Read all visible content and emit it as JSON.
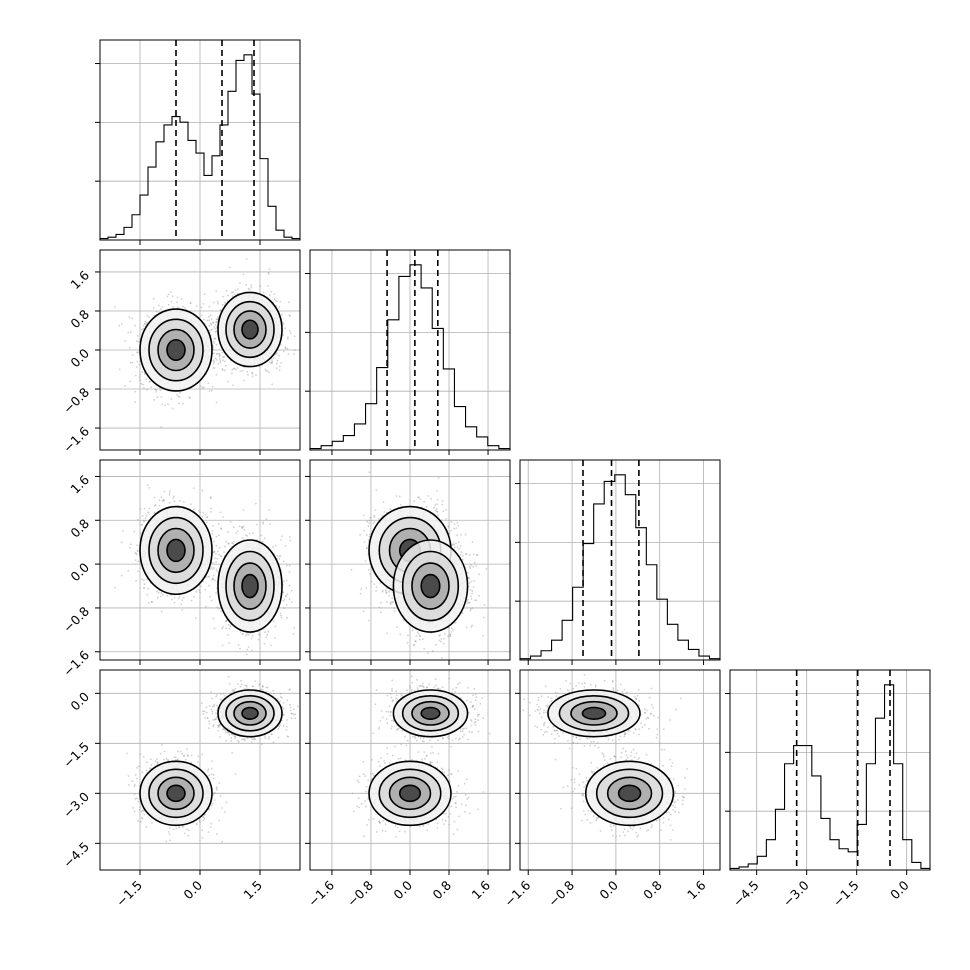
{
  "chart_data": {
    "type": "corner",
    "parameters": 4,
    "colors": {
      "lines": "#000000",
      "grid": "#b0b0b0",
      "points": "#9a9a9a",
      "background": "#ffffff"
    },
    "grid": true,
    "ranges": [
      [
        -2.5,
        2.5
      ],
      [
        -2.05,
        2.05
      ],
      [
        -1.75,
        1.9
      ],
      [
        -5.3,
        0.7
      ]
    ],
    "bottom_ticks": [
      [
        "−1.5",
        "0.0",
        "1.5"
      ],
      [
        "−1.6",
        "−0.8",
        "0.0",
        "0.8",
        "1.6"
      ],
      [
        "−1.6",
        "−0.8",
        "0.0",
        "0.8",
        "1.6"
      ],
      [
        "−4.5",
        "−3.0",
        "−1.5",
        "0.0"
      ]
    ],
    "left_ticks": {
      "1": [
        "1.6",
        "0.8",
        "0.0",
        "−0.8",
        "−1.6"
      ],
      "2": [
        "1.6",
        "0.8",
        "0.0",
        "−0.8",
        "−1.6"
      ],
      "3": [
        "0.0",
        "−1.5",
        "−3.0",
        "−4.5"
      ]
    },
    "quantiles": [
      [
        -0.6,
        0.55,
        1.35
      ],
      [
        -0.47,
        0.1,
        0.57
      ],
      [
        -0.6,
        -0.08,
        0.42
      ],
      [
        -3.3,
        -1.47,
        -0.5
      ]
    ],
    "histograms": [
      {
        "range": [
          -2.5,
          2.5
        ],
        "counts": [
          1,
          2,
          4,
          9,
          18,
          32,
          52,
          70,
          82,
          88,
          84,
          71,
          62,
          46,
          60,
          82,
          106,
          128,
          132,
          104,
          58,
          24,
          7,
          2,
          1
        ]
      },
      {
        "range": [
          -2.05,
          2.05
        ],
        "counts": [
          1,
          3,
          6,
          10,
          18,
          32,
          57,
          90,
          120,
          128,
          112,
          84,
          56,
          30,
          16,
          9,
          3,
          1
        ]
      },
      {
        "range": [
          -1.75,
          1.9
        ],
        "counts": [
          1,
          3,
          7,
          15,
          30,
          55,
          88,
          118,
          135,
          140,
          125,
          100,
          72,
          46,
          27,
          15,
          8,
          3,
          1
        ]
      },
      {
        "range": [
          -5.3,
          0.7
        ],
        "counts": [
          1,
          2,
          4,
          9,
          20,
          40,
          70,
          82,
          82,
          62,
          34,
          20,
          14,
          12,
          30,
          70,
          100,
          122,
          70,
          20,
          5,
          1
        ]
      }
    ],
    "components": [
      {
        "mean": [
          -0.6,
          0.0,
          0.25,
          -3.0
        ],
        "sd": [
          0.45,
          0.42,
          0.4,
          0.48
        ],
        "weight": 0.45
      },
      {
        "mean": [
          1.25,
          0.42,
          -0.4,
          -0.6
        ],
        "sd": [
          0.4,
          0.38,
          0.42,
          0.35
        ],
        "weight": 0.55
      }
    ]
  }
}
